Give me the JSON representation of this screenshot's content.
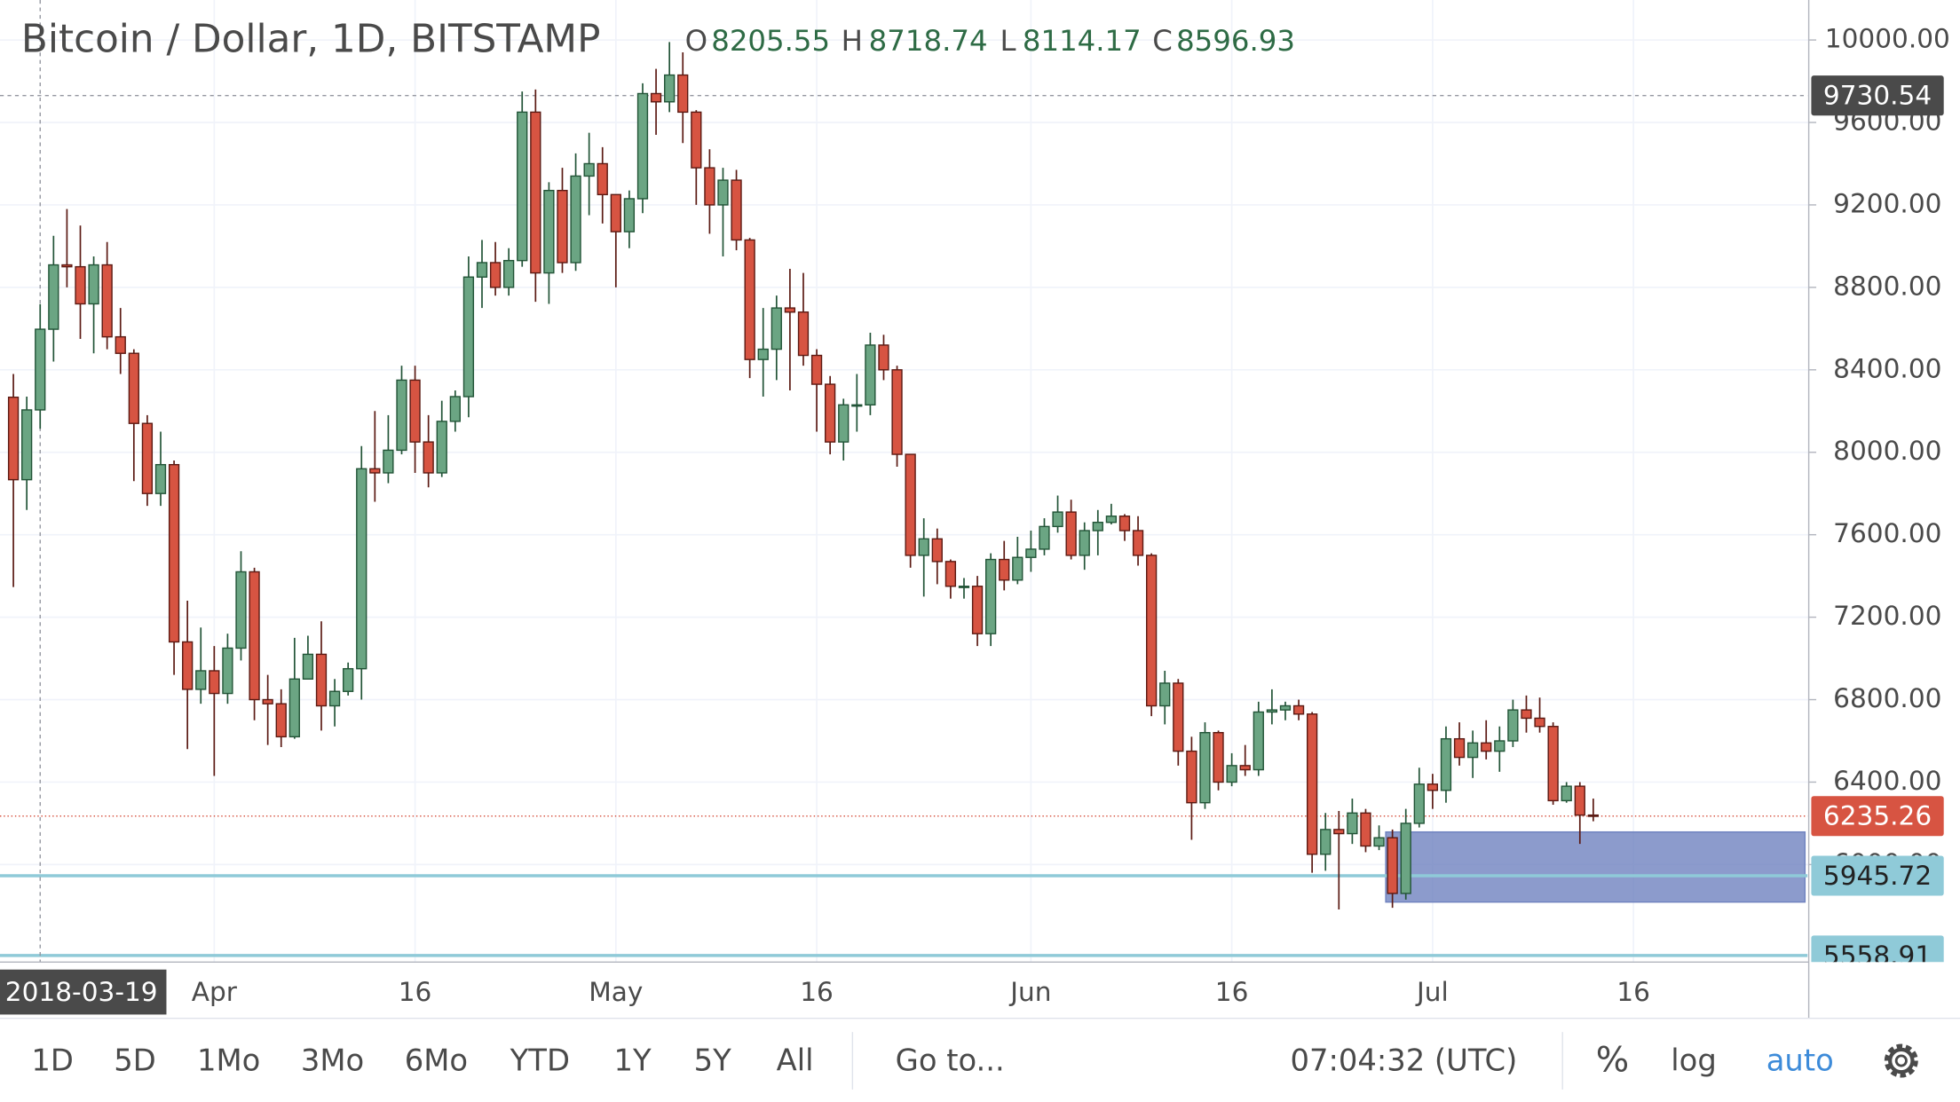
{
  "chart_data": {
    "type": "candlestick",
    "title": "Bitcoin / Dollar, 1D, BITSTAMP",
    "ohlc_legend": {
      "labels": [
        "O",
        "H",
        "L",
        "C"
      ],
      "values": [
        8205.55,
        8718.74,
        8114.17,
        8596.93
      ]
    },
    "x": [
      "2018-03-17",
      "2018-03-18",
      "2018-03-19",
      "2018-03-20",
      "2018-03-21",
      "2018-03-22",
      "2018-03-23",
      "2018-03-24",
      "2018-03-25",
      "2018-03-26",
      "2018-03-27",
      "2018-03-28",
      "2018-03-29",
      "2018-03-30",
      "2018-03-31",
      "2018-04-01",
      "2018-04-02",
      "2018-04-03",
      "2018-04-04",
      "2018-04-05",
      "2018-04-06",
      "2018-04-07",
      "2018-04-08",
      "2018-04-09",
      "2018-04-10",
      "2018-04-11",
      "2018-04-12",
      "2018-04-13",
      "2018-04-14",
      "2018-04-15",
      "2018-04-16",
      "2018-04-17",
      "2018-04-18",
      "2018-04-19",
      "2018-04-20",
      "2018-04-21",
      "2018-04-22",
      "2018-04-23",
      "2018-04-24",
      "2018-04-25",
      "2018-04-26",
      "2018-04-27",
      "2018-04-28",
      "2018-04-29",
      "2018-04-30",
      "2018-05-01",
      "2018-05-02",
      "2018-05-03",
      "2018-05-04",
      "2018-05-05",
      "2018-05-06",
      "2018-05-07",
      "2018-05-08",
      "2018-05-09",
      "2018-05-10",
      "2018-05-11",
      "2018-05-12",
      "2018-05-13",
      "2018-05-14",
      "2018-05-15",
      "2018-05-16",
      "2018-05-17",
      "2018-05-18",
      "2018-05-19",
      "2018-05-20",
      "2018-05-21",
      "2018-05-22",
      "2018-05-23",
      "2018-05-24",
      "2018-05-25",
      "2018-05-26",
      "2018-05-27",
      "2018-05-28",
      "2018-05-29",
      "2018-05-30",
      "2018-05-31",
      "2018-06-01",
      "2018-06-02",
      "2018-06-03",
      "2018-06-04",
      "2018-06-05",
      "2018-06-06",
      "2018-06-07",
      "2018-06-08",
      "2018-06-09",
      "2018-06-10",
      "2018-06-11",
      "2018-06-12",
      "2018-06-13",
      "2018-06-14",
      "2018-06-15",
      "2018-06-16",
      "2018-06-17",
      "2018-06-18",
      "2018-06-19",
      "2018-06-20",
      "2018-06-21",
      "2018-06-22",
      "2018-06-23",
      "2018-06-24",
      "2018-06-25",
      "2018-06-26",
      "2018-06-27",
      "2018-06-28",
      "2018-06-29",
      "2018-06-30",
      "2018-07-01",
      "2018-07-02",
      "2018-07-03",
      "2018-07-04",
      "2018-07-05",
      "2018-07-06",
      "2018-07-07",
      "2018-07-08",
      "2018-07-09",
      "2018-07-10",
      "2018-07-11",
      "2018-07-12",
      "2018-07-13"
    ],
    "open": [
      8267,
      7867,
      8205.55,
      8596.93,
      8909,
      8900,
      8720,
      8909,
      8560,
      8480,
      8140,
      7800,
      7940,
      7080,
      6850,
      6940,
      6830,
      7050,
      7420,
      6800,
      6780,
      6620,
      6900,
      7020,
      6770,
      6840,
      6950,
      7920,
      7900,
      8010,
      8350,
      8050,
      7900,
      8150,
      8270,
      8850,
      8920,
      8800,
      8930,
      9650,
      8870,
      9270,
      8920,
      9340,
      9400,
      9250,
      9070,
      9230,
      9740,
      9700,
      9830,
      9650,
      9380,
      9200,
      9320,
      9030,
      8450,
      8500,
      8700,
      8680,
      8470,
      8330,
      8050,
      8230,
      8230,
      8520,
      8400,
      7990,
      7500,
      7580,
      7470,
      7350,
      7350,
      7120,
      7480,
      7380,
      7490,
      7530,
      7640,
      7710,
      7500,
      7620,
      7660,
      7690,
      7620,
      7500,
      6770,
      6880,
      6550,
      6300,
      6640,
      6400,
      6480,
      6460,
      6740,
      6750,
      6770,
      6730,
      6050,
      6170,
      6150,
      6250,
      6090,
      6130,
      5860,
      6200,
      6390,
      6360,
      6610,
      6520,
      6590,
      6550,
      6600,
      6750,
      6710,
      6670,
      6310,
      6380,
      6240
    ],
    "high": [
      8380,
      8270,
      8718.74,
      9050,
      9180,
      9100,
      8950,
      9020,
      8700,
      8500,
      8180,
      8100,
      7960,
      7280,
      7150,
      7060,
      7120,
      7520,
      7440,
      6920,
      6850,
      7100,
      7110,
      7180,
      6900,
      6980,
      8030,
      8200,
      8180,
      8420,
      8420,
      8180,
      8250,
      8300,
      8950,
      9030,
      9020,
      8990,
      9750,
      9760,
      9310,
      9380,
      9450,
      9550,
      9480,
      9250,
      9270,
      9790,
      9860,
      9990,
      9940,
      9660,
      9470,
      9380,
      9370,
      9040,
      8700,
      8760,
      8890,
      8870,
      8500,
      8370,
      8260,
      8380,
      8580,
      8570,
      8420,
      7990,
      7680,
      7630,
      7480,
      7390,
      7400,
      7510,
      7570,
      7590,
      7620,
      7680,
      7790,
      7770,
      7660,
      7720,
      7750,
      7700,
      7690,
      7510,
      6940,
      6900,
      6620,
      6690,
      6650,
      6540,
      6580,
      6790,
      6850,
      6790,
      6800,
      6740,
      6250,
      6260,
      6320,
      6270,
      6190,
      6170,
      6270,
      6470,
      6440,
      6670,
      6690,
      6650,
      6700,
      6670,
      6800,
      6820,
      6810,
      6690,
      6400,
      6400,
      6320
    ],
    "low": [
      7346,
      7720,
      8114.17,
      8440,
      8800,
      8550,
      8480,
      8500,
      8380,
      7860,
      7740,
      7740,
      6920,
      6560,
      6780,
      6430,
      6780,
      6990,
      6700,
      6580,
      6570,
      6610,
      6900,
      6650,
      6670,
      6820,
      6800,
      7760,
      7850,
      7990,
      7900,
      7830,
      7880,
      8100,
      8170,
      8700,
      8760,
      8760,
      8900,
      8730,
      8720,
      8870,
      8880,
      9150,
      9110,
      8800,
      8990,
      9160,
      9540,
      9650,
      9500,
      9200,
      9060,
      8950,
      8980,
      8360,
      8270,
      8350,
      8300,
      8420,
      8100,
      7990,
      7960,
      8100,
      8180,
      8350,
      7930,
      7440,
      7300,
      7360,
      7290,
      7290,
      7060,
      7060,
      7330,
      7360,
      7420,
      7500,
      7610,
      7480,
      7430,
      7500,
      7650,
      7570,
      7450,
      6720,
      6680,
      6480,
      6120,
      6270,
      6360,
      6380,
      6430,
      6430,
      6680,
      6700,
      6700,
      5960,
      5970,
      5782,
      6100,
      6060,
      6070,
      5790,
      5830,
      6180,
      6270,
      6300,
      6480,
      6420,
      6510,
      6450,
      6570,
      6640,
      6640,
      6290,
      6300,
      6100,
      6210
    ],
    "close": [
      7867,
      8205.55,
      8596.93,
      8909,
      8900,
      8720,
      8909,
      8560,
      8480,
      8140,
      7800,
      7940,
      7080,
      6850,
      6940,
      6830,
      7050,
      7420,
      6800,
      6780,
      6620,
      6900,
      7020,
      6770,
      6840,
      6950,
      7920,
      7900,
      8010,
      8350,
      8050,
      7900,
      8150,
      8270,
      8850,
      8920,
      8800,
      8930,
      9650,
      8870,
      9270,
      8920,
      9340,
      9400,
      9250,
      9070,
      9230,
      9740,
      9700,
      9830,
      9650,
      9380,
      9200,
      9320,
      9030,
      8450,
      8500,
      8700,
      8680,
      8470,
      8330,
      8050,
      8230,
      8230,
      8520,
      8400,
      7990,
      7500,
      7580,
      7470,
      7350,
      7350,
      7120,
      7480,
      7380,
      7490,
      7530,
      7640,
      7710,
      7500,
      7620,
      7660,
      7690,
      7620,
      7500,
      6770,
      6880,
      6550,
      6300,
      6640,
      6400,
      6480,
      6460,
      6740,
      6750,
      6770,
      6730,
      6050,
      6170,
      6150,
      6250,
      6090,
      6130,
      5860,
      6200,
      6390,
      6360,
      6610,
      6520,
      6590,
      6550,
      6600,
      6750,
      6710,
      6670,
      6310,
      6380,
      6240,
      6235.26
    ],
    "up_color": "#6ba583",
    "up_border": "#225437",
    "down_color": "#d75442",
    "down_border": "#5b1a13",
    "xlim": [
      "2018-03-16",
      "2018-07-29"
    ],
    "xticks": [
      {
        "value": "2018-04-01",
        "label": "Apr"
      },
      {
        "value": "2018-04-16",
        "label": "16"
      },
      {
        "value": "2018-05-01",
        "label": "May"
      },
      {
        "value": "2018-05-16",
        "label": "16"
      },
      {
        "value": "2018-06-01",
        "label": "Jun"
      },
      {
        "value": "2018-06-16",
        "label": "16"
      },
      {
        "value": "2018-07-01",
        "label": "Jul"
      },
      {
        "value": "2018-07-16",
        "label": "16"
      }
    ],
    "ylim": [
      5527,
      10194
    ],
    "yticks": [
      {
        "value": 10000,
        "label": "10000.00"
      },
      {
        "value": 9600,
        "label": "9600.00"
      },
      {
        "value": 9200,
        "label": "9200.00"
      },
      {
        "value": 8800,
        "label": "8800.00"
      },
      {
        "value": 8400,
        "label": "8400.00"
      },
      {
        "value": 8000,
        "label": "8000.00"
      },
      {
        "value": 7600,
        "label": "7600.00"
      },
      {
        "value": 7200,
        "label": "7200.00"
      },
      {
        "value": 6800,
        "label": "6800.00"
      },
      {
        "value": 6400,
        "label": "6400.00"
      },
      {
        "value": 6000,
        "label": "6000.00"
      }
    ],
    "grid": true,
    "crosshair": {
      "x": "2018-03-19",
      "y": 9730.54,
      "color": "#4a4a4a"
    },
    "price_lines": [
      {
        "value": 6235.26,
        "color": "#d75442",
        "text_color": "#ffffff",
        "style": "dotted"
      },
      {
        "value": 5945.72,
        "color": "#8fcad8",
        "text_color": "#222222",
        "style": "solid"
      },
      {
        "value": 5558.91,
        "color": "#8fcad8",
        "text_color": "#222222",
        "style": "solid"
      }
    ],
    "zones": [
      {
        "x0": "2018-06-28",
        "top": 6158,
        "bottom": 5818,
        "color": "#6f82bf"
      }
    ]
  },
  "toolbar": {
    "ranges": [
      "1D",
      "5D",
      "1Mo",
      "3Mo",
      "6Mo",
      "YTD",
      "1Y",
      "5Y",
      "All"
    ],
    "goto": "Go to...",
    "clock": "07:04:32 (UTC)",
    "percent": "%",
    "log": "log",
    "auto": "auto"
  }
}
